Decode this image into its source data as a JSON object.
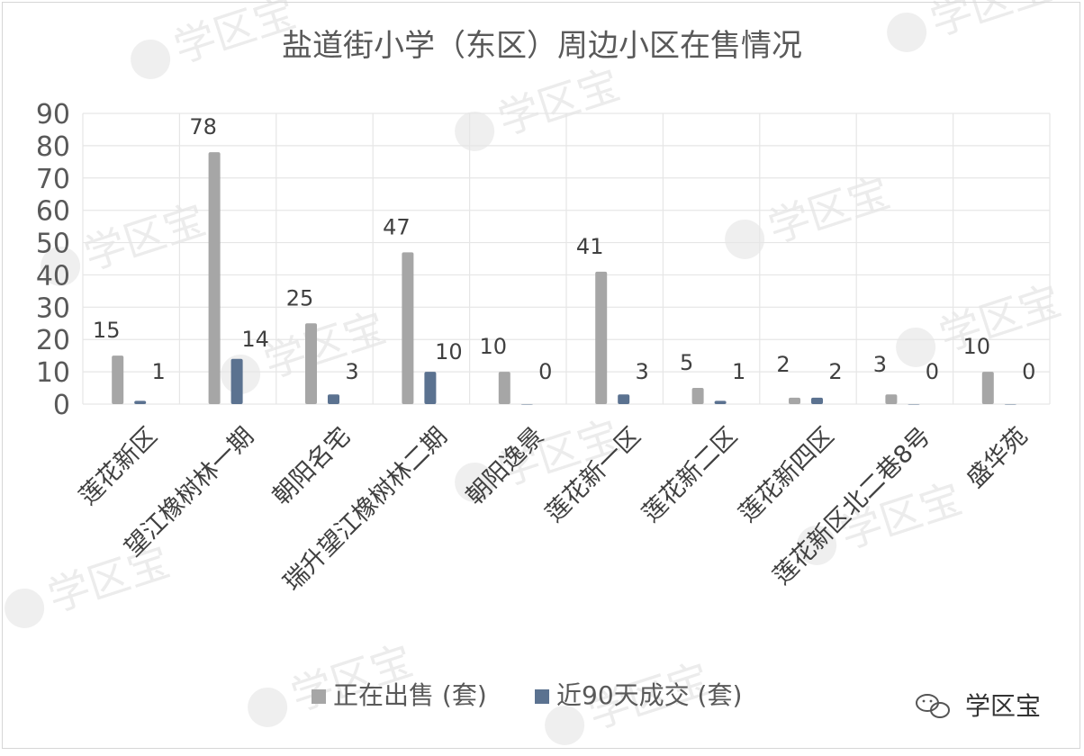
{
  "watermark": {
    "text": "学区宝"
  },
  "brand": {
    "name": "学区宝",
    "icon": "wechat-icon"
  },
  "colors": {
    "series1": "#a6a6a6",
    "series2": "#5b7290",
    "grid": "#e6e6e6",
    "text": "#595959"
  },
  "chart_data": {
    "type": "bar",
    "title": "盐道街小学（东区）周边小区在售情况",
    "xlabel": "",
    "ylabel": "",
    "ylim": [
      0,
      90
    ],
    "yticks": [
      "0",
      "10",
      "20",
      "30",
      "40",
      "50",
      "60",
      "70",
      "80",
      "90"
    ],
    "grid": true,
    "legend_position": "bottom",
    "categories": [
      "莲花新区",
      "望江橡树林一期",
      "朝阳名宅",
      "瑞升望江橡树林二期",
      "朝阳逸景",
      "莲花新一区",
      "莲花新二区",
      "莲花新四区",
      "莲花新区北二巷8号",
      "盛华苑"
    ],
    "series": [
      {
        "name": "正在出售 (套)",
        "values": [
          15,
          78,
          25,
          47,
          10,
          41,
          5,
          2,
          3,
          10
        ]
      },
      {
        "name": "近90天成交 (套)",
        "values": [
          1,
          14,
          3,
          10,
          0,
          3,
          1,
          2,
          0,
          0
        ]
      }
    ]
  }
}
